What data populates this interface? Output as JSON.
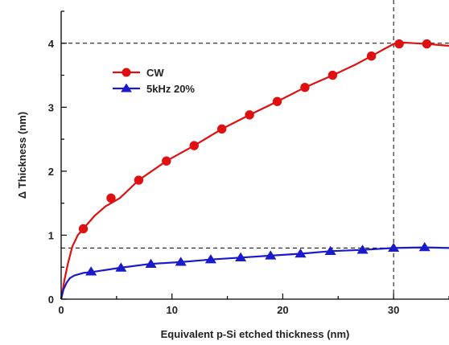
{
  "chart_data": {
    "type": "line",
    "xlabel": "Equivalent p-Si etched thickness (nm)",
    "ylabel": "Δ Thickness (nm)",
    "xlim": [
      0,
      35
    ],
    "ylim": [
      0,
      4.5
    ],
    "x_ticks": [
      0,
      10,
      20,
      30
    ],
    "y_ticks": [
      0,
      1,
      2,
      3,
      4
    ],
    "grid": false,
    "legend_position": "upper-left",
    "reference_lines": {
      "horizontal": [
        4.0,
        0.8
      ],
      "vertical": [
        30
      ]
    },
    "series": [
      {
        "name": "CW",
        "color": "#e01010",
        "marker": "circle",
        "curve_x": [
          0,
          0.3,
          0.6,
          1.0,
          1.5,
          2.0,
          3,
          4,
          5.3,
          7,
          9.5,
          12,
          14.5,
          17,
          19.5,
          22,
          24.5,
          26.5,
          28,
          30,
          31,
          32,
          33,
          35
        ],
        "curve_y": [
          0,
          0.3,
          0.55,
          0.82,
          1.0,
          1.1,
          1.3,
          1.45,
          1.58,
          1.86,
          2.16,
          2.4,
          2.66,
          2.88,
          3.09,
          3.31,
          3.5,
          3.66,
          3.8,
          3.99,
          4.01,
          4.0,
          3.99,
          3.96
        ],
        "marker_x": [
          2.0,
          4.5,
          7.0,
          9.5,
          12.0,
          14.5,
          17.0,
          19.5,
          22.0,
          24.5,
          28.0,
          30.5,
          33.0
        ],
        "marker_y": [
          1.1,
          1.58,
          1.86,
          2.16,
          2.4,
          2.66,
          2.88,
          3.09,
          3.31,
          3.5,
          3.8,
          3.99,
          3.99
        ]
      },
      {
        "name": "5kHz 20%",
        "color": "#1a1acc",
        "marker": "triangle",
        "curve_x": [
          0,
          0.2,
          0.5,
          0.8,
          1.2,
          2.0,
          3,
          5.3,
          8,
          10.8,
          13.5,
          16.2,
          18.9,
          21.6,
          24.3,
          27.2,
          30,
          32.8,
          35
        ],
        "curve_y": [
          0,
          0.15,
          0.26,
          0.33,
          0.37,
          0.41,
          0.43,
          0.49,
          0.55,
          0.58,
          0.62,
          0.65,
          0.68,
          0.71,
          0.75,
          0.77,
          0.8,
          0.81,
          0.8
        ],
        "marker_x": [
          2.7,
          5.4,
          8.1,
          10.8,
          13.5,
          16.2,
          18.9,
          21.6,
          24.3,
          27.2,
          30.0,
          32.8
        ],
        "marker_y": [
          0.43,
          0.49,
          0.55,
          0.58,
          0.62,
          0.65,
          0.68,
          0.71,
          0.75,
          0.77,
          0.8,
          0.81
        ]
      }
    ]
  }
}
